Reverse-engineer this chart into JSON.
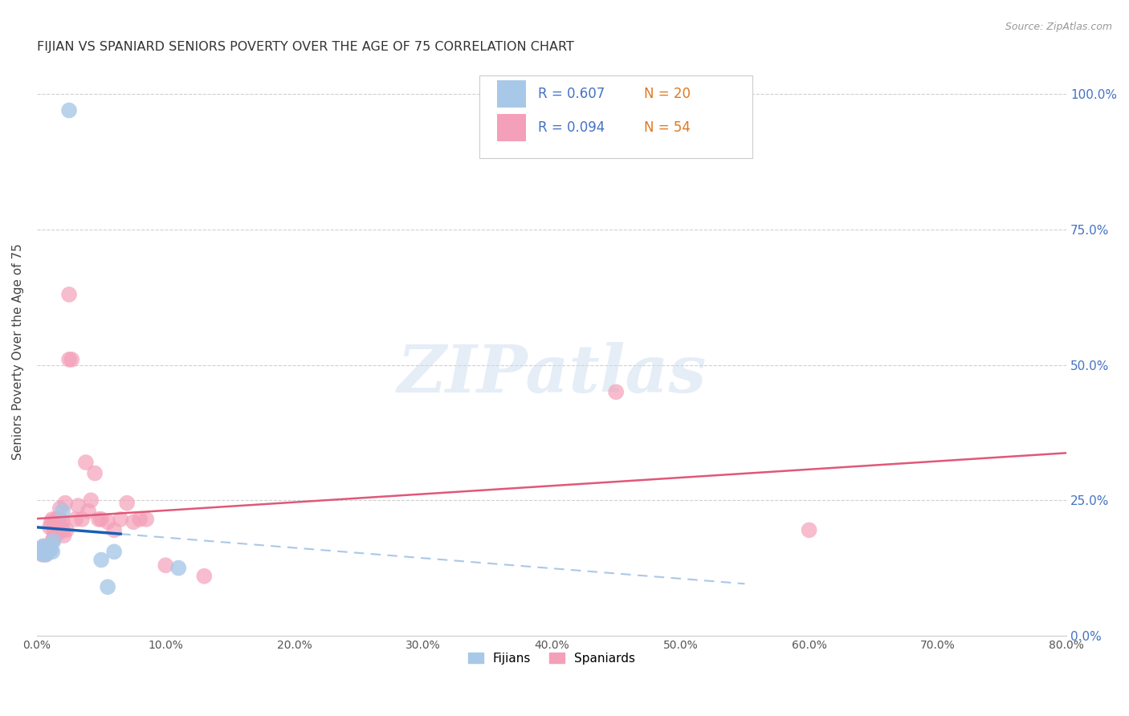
{
  "title": "FIJIAN VS SPANIARD SENIORS POVERTY OVER THE AGE OF 75 CORRELATION CHART",
  "source": "Source: ZipAtlas.com",
  "ylabel": "Seniors Poverty Over the Age of 75",
  "xlim": [
    0.0,
    0.8
  ],
  "ylim": [
    0.0,
    1.05
  ],
  "fijian_color": "#a8c8e8",
  "spaniard_color": "#f4a0b8",
  "fijian_line_color": "#1a5fb4",
  "spaniard_line_color": "#e05878",
  "dashed_line_color": "#aac8e8",
  "watermark_text": "ZIPatlas",
  "legend_r_fijian": "R = 0.607",
  "legend_n_fijian": "N = 20",
  "legend_r_spaniard": "R = 0.094",
  "legend_n_spaniard": "N = 54",
  "fijian_x": [
    0.002,
    0.003,
    0.004,
    0.005,
    0.005,
    0.006,
    0.007,
    0.007,
    0.008,
    0.009,
    0.01,
    0.011,
    0.012,
    0.013,
    0.02,
    0.05,
    0.055,
    0.06,
    0.11,
    0.025
  ],
  "fijian_y": [
    0.155,
    0.16,
    0.155,
    0.15,
    0.165,
    0.155,
    0.15,
    0.16,
    0.155,
    0.155,
    0.165,
    0.16,
    0.155,
    0.175,
    0.23,
    0.14,
    0.09,
    0.155,
    0.125,
    0.97
  ],
  "spaniard_x": [
    0.003,
    0.004,
    0.005,
    0.005,
    0.006,
    0.007,
    0.007,
    0.008,
    0.008,
    0.009,
    0.01,
    0.01,
    0.011,
    0.012,
    0.012,
    0.013,
    0.013,
    0.014,
    0.015,
    0.015,
    0.016,
    0.017,
    0.017,
    0.018,
    0.018,
    0.019,
    0.02,
    0.02,
    0.021,
    0.022,
    0.023,
    0.025,
    0.025,
    0.027,
    0.03,
    0.032,
    0.035,
    0.038,
    0.04,
    0.042,
    0.045,
    0.048,
    0.05,
    0.055,
    0.06,
    0.065,
    0.07,
    0.075,
    0.08,
    0.085,
    0.1,
    0.13,
    0.45,
    0.6
  ],
  "spaniard_y": [
    0.155,
    0.15,
    0.155,
    0.165,
    0.155,
    0.15,
    0.16,
    0.155,
    0.165,
    0.165,
    0.16,
    0.2,
    0.21,
    0.175,
    0.215,
    0.18,
    0.195,
    0.21,
    0.195,
    0.215,
    0.215,
    0.21,
    0.19,
    0.235,
    0.215,
    0.2,
    0.195,
    0.21,
    0.185,
    0.245,
    0.195,
    0.63,
    0.51,
    0.51,
    0.215,
    0.24,
    0.215,
    0.32,
    0.23,
    0.25,
    0.3,
    0.215,
    0.215,
    0.21,
    0.195,
    0.215,
    0.245,
    0.21,
    0.215,
    0.215,
    0.13,
    0.11,
    0.45,
    0.195
  ],
  "xtick_vals": [
    0.0,
    0.1,
    0.2,
    0.3,
    0.4,
    0.5,
    0.6,
    0.7,
    0.8
  ],
  "ytick_vals": [
    0.0,
    0.25,
    0.5,
    0.75,
    1.0
  ]
}
